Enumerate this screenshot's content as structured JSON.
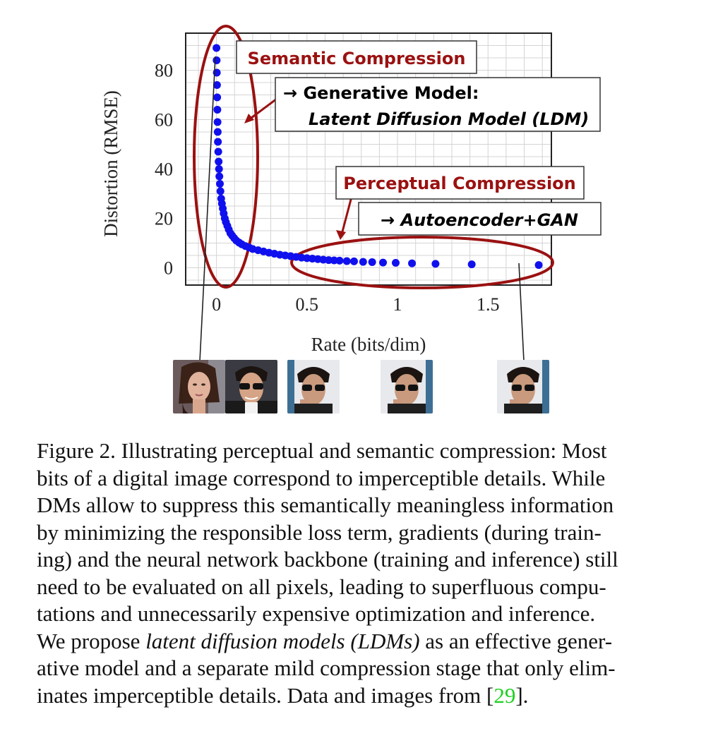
{
  "chart_data": {
    "type": "scatter",
    "xlabel": "Rate (bits/dim)",
    "ylabel": "Distortion (RMSE)",
    "xlim": [
      -0.17,
      1.85
    ],
    "ylim": [
      -7,
      95
    ],
    "xticks": [
      "0",
      "0.5",
      "1",
      "1.5"
    ],
    "xtick_values": [
      0,
      0.5,
      1,
      1.5
    ],
    "yticks": [
      "0",
      "20",
      "40",
      "60",
      "80"
    ],
    "ytick_values": [
      0,
      20,
      40,
      60,
      80
    ],
    "grid": true,
    "point_color": "#1010ee",
    "points": [
      [
        0.0,
        89
      ],
      [
        0.001,
        84
      ],
      [
        0.002,
        79
      ],
      [
        0.003,
        74
      ],
      [
        0.004,
        69
      ],
      [
        0.005,
        64
      ],
      [
        0.006,
        59
      ],
      [
        0.007,
        55
      ],
      [
        0.008,
        51
      ],
      [
        0.01,
        47
      ],
      [
        0.012,
        43
      ],
      [
        0.014,
        40
      ],
      [
        0.016,
        37
      ],
      [
        0.019,
        34
      ],
      [
        0.022,
        31
      ],
      [
        0.026,
        28
      ],
      [
        0.03,
        26
      ],
      [
        0.035,
        24
      ],
      [
        0.04,
        22
      ],
      [
        0.046,
        20
      ],
      [
        0.052,
        18.5
      ],
      [
        0.06,
        17
      ],
      [
        0.068,
        15.5
      ],
      [
        0.077,
        14
      ],
      [
        0.087,
        13
      ],
      [
        0.098,
        12
      ],
      [
        0.11,
        11
      ],
      [
        0.125,
        10.2
      ],
      [
        0.14,
        9.5
      ],
      [
        0.16,
        8.8
      ],
      [
        0.18,
        8.2
      ],
      [
        0.2,
        7.6
      ],
      [
        0.23,
        7.1
      ],
      [
        0.26,
        6.6
      ],
      [
        0.29,
        6.1
      ],
      [
        0.32,
        5.7
      ],
      [
        0.35,
        5.3
      ],
      [
        0.38,
        5.0
      ],
      [
        0.41,
        4.7
      ],
      [
        0.44,
        4.4
      ],
      [
        0.47,
        4.1
      ],
      [
        0.5,
        3.9
      ],
      [
        0.53,
        3.7
      ],
      [
        0.56,
        3.5
      ],
      [
        0.59,
        3.3
      ],
      [
        0.62,
        3.1
      ],
      [
        0.65,
        3.0
      ],
      [
        0.68,
        2.9
      ],
      [
        0.72,
        2.7
      ],
      [
        0.76,
        2.6
      ],
      [
        0.81,
        2.4
      ],
      [
        0.86,
        2.3
      ],
      [
        0.92,
        2.1
      ],
      [
        0.99,
        2.0
      ],
      [
        1.08,
        1.8
      ],
      [
        1.21,
        1.6
      ],
      [
        1.41,
        1.4
      ],
      [
        1.78,
        1.1
      ]
    ],
    "annotations": {
      "semantic_title": "Semantic Compression",
      "semantic_line1": "→ Generative Model:",
      "semantic_line2": "Latent Diffusion Model (LDM)",
      "perceptual_title": "Perceptual Compression",
      "perceptual_line1": "→ Autoencoder+GAN"
    },
    "annotation_color": "#9b1111"
  },
  "caption": {
    "lines": [
      "Figure 2.  Illustrating perceptual and semantic compression: Most",
      "bits of a digital image correspond to imperceptible details. While",
      "DMs allow to suppress this semantically meaningless information",
      "by minimizing the responsible loss term, gradients (during train-",
      "ing) and the neural network backbone (training and inference) still",
      "need to be evaluated on all pixels, leading to superfluous compu-",
      "tations and unnecessarily expensive optimization and inference."
    ],
    "line8_pre": "We propose ",
    "line8_italic": "latent diffusion models (LDMs)",
    "line8_post": " as an effective gener-",
    "line9": "ative model and a separate mild compression stage that only elim-",
    "line10_pre": "inates imperceptible details. Data and images from [",
    "line10_cite": "29",
    "line10_post": "]."
  },
  "thumbnails": [
    "face-woman",
    "face-man-sunglasses",
    "face-man-sunglasses",
    "face-man-sunglasses",
    "face-man-sunglasses"
  ]
}
